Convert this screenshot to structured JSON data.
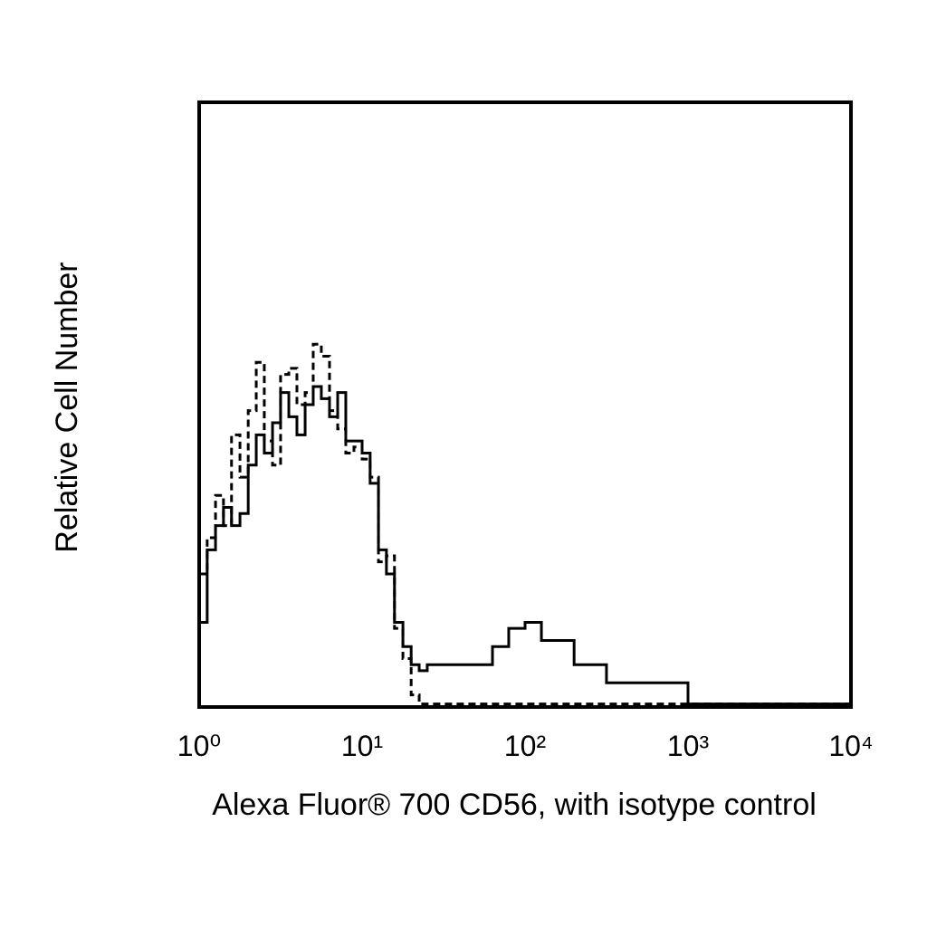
{
  "chart_data": {
    "type": "line",
    "xlabel": "Alexa Fluor® 700 CD56, with isotype control",
    "ylabel": "Relative Cell Number",
    "xscale": "log",
    "step": true,
    "xlim": [
      1,
      10000
    ],
    "ylim": [
      0,
      100
    ],
    "xticks": [
      {
        "value": 1,
        "label": "10⁰"
      },
      {
        "value": 10,
        "label": "10¹"
      },
      {
        "value": 100,
        "label": "10²"
      },
      {
        "value": 1000,
        "label": "10³"
      },
      {
        "value": 10000,
        "label": "10⁴"
      }
    ],
    "x": [
      1,
      1.12,
      1.26,
      1.41,
      1.58,
      1.78,
      2,
      2.24,
      2.51,
      2.82,
      3.16,
      3.55,
      3.98,
      4.47,
      5.01,
      5.62,
      6.31,
      7.08,
      7.94,
      8.91,
      10,
      11.2,
      12.6,
      14.1,
      15.8,
      17.8,
      20,
      22.4,
      25.1,
      28.2,
      31.6,
      39.8,
      50.1,
      63.1,
      79.4,
      100,
      126,
      158,
      200,
      251,
      316,
      398,
      501,
      631,
      794,
      1000,
      10000
    ],
    "series": [
      {
        "color": "#000000",
        "dashed": false,
        "values": [
          14,
          26,
          30,
          33,
          30,
          32,
          40,
          45,
          42,
          47,
          52,
          48,
          45,
          50,
          53,
          51,
          48,
          52,
          44,
          44,
          42,
          37,
          26,
          22,
          14,
          10,
          7,
          6,
          7,
          7,
          7,
          7,
          7,
          10,
          13,
          14,
          11,
          11,
          7,
          7,
          4,
          4,
          4,
          4,
          4,
          0.5,
          0.5
        ]
      },
      {
        "color": "#000000",
        "dashed": true,
        "values": [
          22,
          28,
          35,
          30,
          45,
          38,
          49,
          57,
          44,
          40,
          55,
          56,
          50,
          52,
          60,
          58,
          49,
          46,
          42,
          43,
          41,
          38,
          24,
          25,
          13,
          8,
          2,
          0.5,
          0.5,
          0.5,
          0.5,
          0.5,
          0.5,
          0.5,
          0.5,
          0.5,
          0.5,
          0.5,
          0.5,
          0.5,
          0.5,
          0.5,
          0.5,
          0.5,
          0.5,
          0.5,
          0.5
        ]
      }
    ]
  }
}
